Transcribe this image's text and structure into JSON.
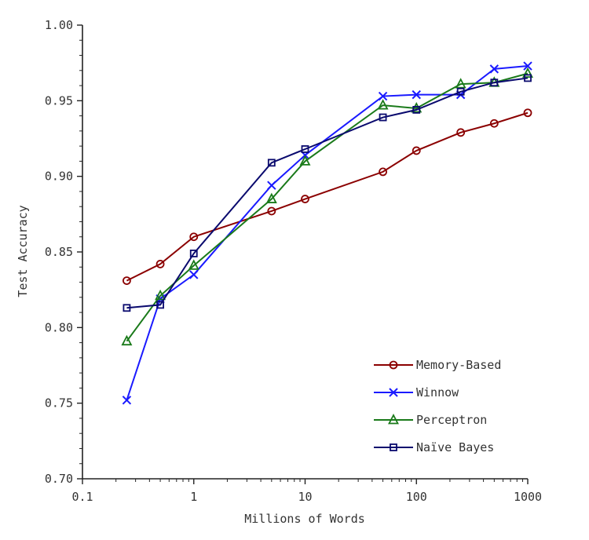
{
  "chart_data": {
    "type": "line",
    "title": "",
    "xlabel": "Millions of Words",
    "ylabel": "Test Accuracy",
    "x_scale": "log",
    "xlim": [
      0.1,
      1000
    ],
    "ylim": [
      0.7,
      1.0
    ],
    "x_ticks": [
      0.1,
      1,
      10,
      100,
      1000
    ],
    "x_tick_labels": [
      "0.1",
      "1",
      "10",
      "100",
      "1000"
    ],
    "y_ticks": [
      0.7,
      0.75,
      0.8,
      0.85,
      0.9,
      0.95,
      1.0
    ],
    "y_tick_labels": [
      "0.70",
      "0.75",
      "0.80",
      "0.85",
      "0.90",
      "0.95",
      "1.00"
    ],
    "grid": false,
    "legend_position": "bottom-right",
    "series": [
      {
        "name": "Memory-Based",
        "color": "#8b0000",
        "marker": "circle",
        "x": [
          0.25,
          0.5,
          1,
          5,
          10,
          50,
          100,
          250,
          500,
          1000
        ],
        "y": [
          0.831,
          0.842,
          0.86,
          0.877,
          0.885,
          0.903,
          0.917,
          0.929,
          0.935,
          0.942
        ]
      },
      {
        "name": "Winnow",
        "color": "#1a1aff",
        "marker": "x",
        "x": [
          0.25,
          0.5,
          1,
          5,
          10,
          50,
          100,
          250,
          500,
          1000
        ],
        "y": [
          0.752,
          0.819,
          0.835,
          0.894,
          0.914,
          0.953,
          0.954,
          0.954,
          0.971,
          0.973
        ]
      },
      {
        "name": "Perceptron",
        "color": "#1a7a1a",
        "marker": "triangle",
        "x": [
          0.25,
          0.5,
          1,
          5,
          10,
          50,
          100,
          250,
          500,
          1000
        ],
        "y": [
          0.791,
          0.821,
          0.841,
          0.885,
          0.91,
          0.947,
          0.945,
          0.961,
          0.962,
          0.968
        ]
      },
      {
        "name": "Naïve Bayes",
        "color": "#0a0a6e",
        "marker": "square",
        "x": [
          0.25,
          0.5,
          1,
          5,
          10,
          50,
          100,
          250,
          500,
          1000
        ],
        "y": [
          0.813,
          0.815,
          0.849,
          0.909,
          0.918,
          0.939,
          0.944,
          0.956,
          0.962,
          0.965
        ]
      }
    ]
  }
}
